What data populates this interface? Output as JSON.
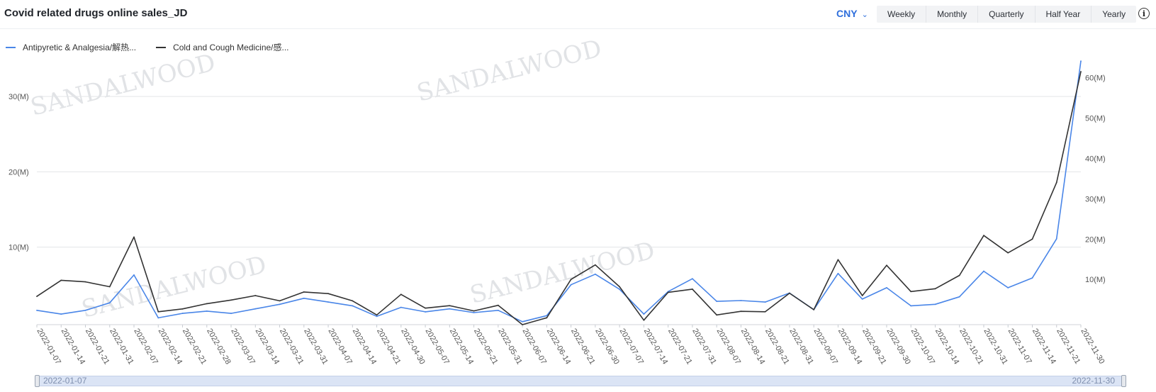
{
  "header": {
    "title": "Covid related drugs online sales_JD",
    "currency": "CNY",
    "tabs": [
      "Weekly",
      "Monthly",
      "Quarterly",
      "Half Year",
      "Yearly"
    ],
    "info_icon": "info-icon"
  },
  "legend": {
    "items": [
      {
        "label": "Antipyretic & Analgesia/解热...",
        "color": "#4a86e8"
      },
      {
        "label": "Cold and Cough Medicine/感...",
        "color": "#333333"
      }
    ]
  },
  "watermark": "SANDALWOOD",
  "slider": {
    "start": "2022-01-07",
    "end": "2022-11-30"
  },
  "chart_data": {
    "type": "line",
    "x": [
      "2022-01-07",
      "2022-01-14",
      "2022-01-21",
      "2022-01-31",
      "2022-02-07",
      "2022-02-14",
      "2022-02-21",
      "2022-02-28",
      "2022-03-07",
      "2022-03-14",
      "2022-03-21",
      "2022-03-31",
      "2022-04-07",
      "2022-04-14",
      "2022-04-21",
      "2022-04-30",
      "2022-05-07",
      "2022-05-14",
      "2022-05-21",
      "2022-05-31",
      "2022-06-07",
      "2022-06-14",
      "2022-06-21",
      "2022-06-30",
      "2022-07-07",
      "2022-07-14",
      "2022-07-21",
      "2022-07-31",
      "2022-08-07",
      "2022-08-14",
      "2022-08-21",
      "2022-08-31",
      "2022-09-07",
      "2022-09-14",
      "2022-09-21",
      "2022-09-30",
      "2022-10-07",
      "2022-10-14",
      "2022-10-21",
      "2022-10-31",
      "2022-11-07",
      "2022-11-14",
      "2022-11-21",
      "2022-11-30"
    ],
    "series": [
      {
        "name": "Antipyretic & Analgesia/解热...",
        "axis": "left",
        "color": "#4a86e8",
        "values": [
          1.6,
          1.1,
          1.6,
          2.6,
          6.3,
          0.6,
          1.2,
          1.5,
          1.2,
          1.8,
          2.4,
          3.2,
          2.7,
          2.2,
          0.8,
          2.0,
          1.4,
          1.8,
          1.3,
          1.6,
          0.1,
          0.9,
          5.0,
          6.4,
          4.4,
          1.1,
          4.1,
          5.8,
          2.8,
          2.9,
          2.7,
          3.9,
          1.7,
          6.5,
          3.1,
          4.6,
          2.2,
          2.4,
          3.4,
          6.8,
          4.6,
          5.9,
          11.1,
          34.7
        ]
      },
      {
        "name": "Cold and Cough Medicine/感...",
        "axis": "right",
        "color": "#333333",
        "values": [
          5.8,
          9.8,
          9.4,
          8.2,
          20.5,
          2.0,
          2.7,
          4.0,
          4.9,
          6.0,
          4.7,
          6.9,
          6.5,
          4.7,
          1.2,
          6.3,
          2.9,
          3.5,
          2.2,
          3.6,
          -1.2,
          0.5,
          10.0,
          13.6,
          8.2,
          -0.1,
          6.8,
          7.6,
          1.2,
          2.1,
          2.0,
          6.6,
          2.5,
          14.9,
          6.0,
          13.5,
          7.0,
          7.7,
          11.0,
          20.9,
          16.6,
          20.0,
          34.0,
          61.5
        ]
      }
    ],
    "y_left": {
      "ticks": [
        "10(M)",
        "20(M)",
        "30(M)"
      ],
      "ylim": [
        -0.3,
        33.3
      ]
    },
    "y_right": {
      "ticks": [
        "10(M)",
        "20(M)",
        "30(M)",
        "40(M)",
        "50(M)",
        "60(M)"
      ],
      "ylim": [
        -1.2,
        61.5
      ]
    },
    "grid": true,
    "legend_position": "top-left"
  }
}
